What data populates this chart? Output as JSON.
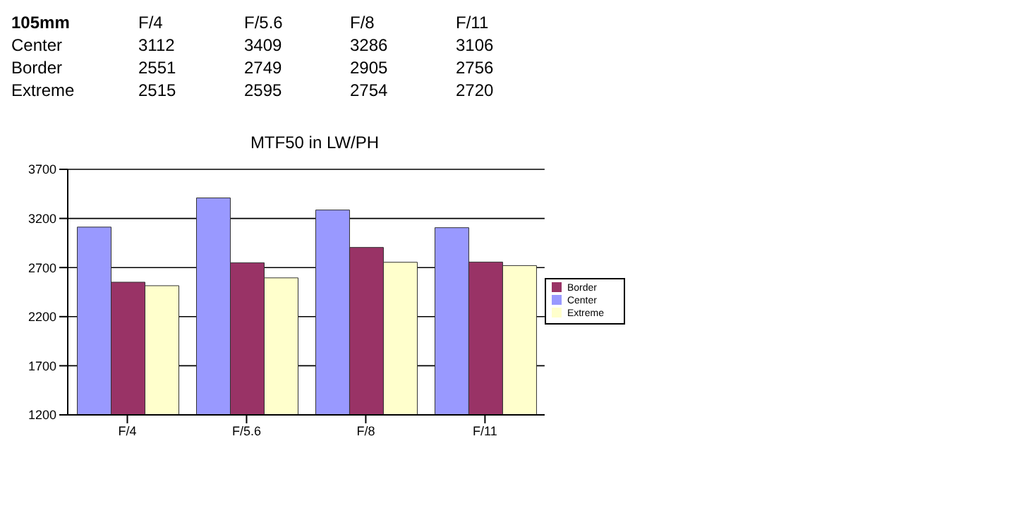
{
  "chart_data": {
    "type": "bar",
    "title": "MTF50 in LW/PH",
    "annotations": [
      "105mm"
    ],
    "categories": [
      "F/4",
      "F/5.6",
      "F/8",
      "F/11"
    ],
    "series": [
      {
        "name": "Center",
        "color": "#9999ff",
        "values": [
          3112,
          3409,
          3286,
          3106
        ]
      },
      {
        "name": "Border",
        "color": "#993366",
        "values": [
          2551,
          2749,
          2905,
          2756
        ]
      },
      {
        "name": "Extreme",
        "color": "#ffffcc",
        "values": [
          2515,
          2595,
          2754,
          2720
        ]
      }
    ],
    "ylim": [
      1200,
      3700
    ],
    "yticks": [
      1200,
      1700,
      2200,
      2700,
      3200,
      3700
    ],
    "grid": "y",
    "legend": "right",
    "data_labels": true
  }
}
